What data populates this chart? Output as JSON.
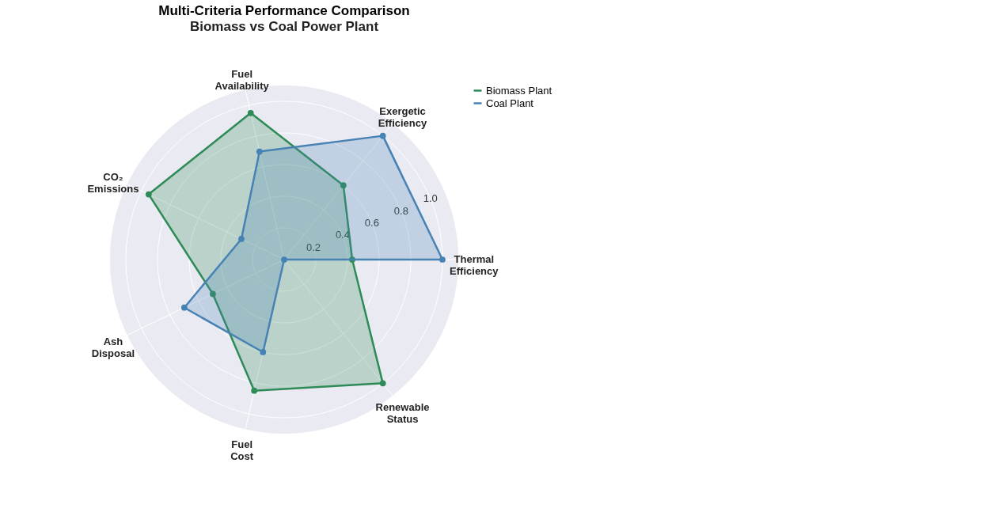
{
  "chart_data": {
    "type": "radar",
    "title": "Multi-Criteria Performance Comparison",
    "subtitle": "Biomass vs Coal Power Plant",
    "categories": [
      "Fuel Availability",
      "Exergetic Efficiency",
      "Thermal Efficiency",
      "Renewable Status",
      "Fuel Cost",
      "Ash Disposal",
      "CO₂ Emissions"
    ],
    "series": [
      {
        "name": "Biomass Plant",
        "color": "#2e8b57",
        "values": [
          0.95,
          0.6,
          0.43,
          1.0,
          0.85,
          0.5,
          0.95
        ]
      },
      {
        "name": "Coal Plant",
        "color": "#4682b4",
        "values": [
          0.7,
          1.0,
          1.0,
          0.0,
          0.6,
          0.7,
          0.3
        ]
      }
    ],
    "ylim": [
      0,
      1.1
    ],
    "yticks": [
      0.2,
      0.4,
      0.6,
      0.8,
      {
        "value": 1,
        "label": "1.0"
      }
    ],
    "grid": true,
    "legend": "top right",
    "marker": "circle",
    "line_style": "solid"
  }
}
